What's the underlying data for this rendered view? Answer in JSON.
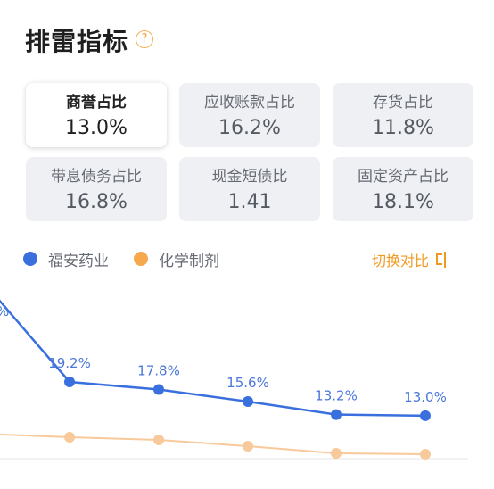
{
  "header": {
    "title": "排雷指标",
    "help_icon_glyph": "?"
  },
  "cards": [
    {
      "label": "商誉占比",
      "value": "13.0%",
      "active": true
    },
    {
      "label": "应收账款占比",
      "value": "16.2%",
      "active": false
    },
    {
      "label": "存货占比",
      "value": "11.8%",
      "active": false
    },
    {
      "label": "带息债务占比",
      "value": "16.8%",
      "active": false
    },
    {
      "label": "现金短债比",
      "value": "1.41",
      "active": false
    },
    {
      "label": "固定资产占比",
      "value": "18.1%",
      "active": false
    }
  ],
  "legend": [
    {
      "name": "福安药业",
      "color": "#3a6fde"
    },
    {
      "name": "化学制剂",
      "color": "#f5a94c"
    }
  ],
  "switch_label": "切换对比",
  "colors": {
    "series_primary": "#3a6fde",
    "series_secondary": "#f8c99a",
    "accent": "#f09a22"
  },
  "chart_data": {
    "type": "line",
    "grid": false,
    "series": [
      {
        "name": "福安药业",
        "values": [
          null,
          19.2,
          17.8,
          15.6,
          13.2,
          13.0
        ],
        "labels": [
          "",
          "19.2%",
          "17.8%",
          "15.6%",
          "13.2%",
          "13.0%"
        ]
      },
      {
        "name": "化学制剂",
        "values": [
          null,
          null,
          null,
          null,
          null,
          null
        ],
        "labels": [
          "",
          "",
          "",
          "",
          "",
          ""
        ]
      }
    ]
  }
}
